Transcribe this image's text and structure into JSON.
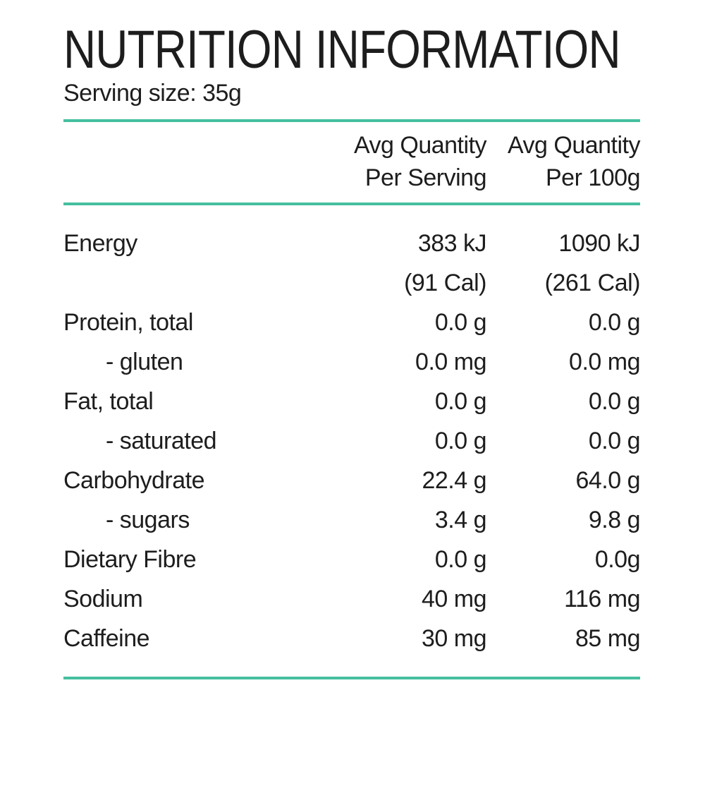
{
  "page": {
    "background_color": "#ffffff",
    "text_color": "#1d1d1d",
    "accent_line_color": "#46bfa0"
  },
  "header": {
    "title": "NUTRITION INFORMATION",
    "serving_size": "Serving size: 35g"
  },
  "table": {
    "columns": [
      {
        "label_line1": "Avg Quantity",
        "label_line2": "Per Serving"
      },
      {
        "label_line1": "Avg Quantity",
        "label_line2": "Per 100g"
      }
    ],
    "rows": [
      {
        "label": "Energy",
        "indent": false,
        "per_serving": "383 kJ",
        "per_100g": "1090 kJ"
      },
      {
        "label": "",
        "indent": false,
        "per_serving": "(91 Cal)",
        "per_100g": "(261 Cal)"
      },
      {
        "label": "Protein, total",
        "indent": false,
        "per_serving": "0.0 g",
        "per_100g": "0.0 g"
      },
      {
        "label": "- gluten",
        "indent": true,
        "per_serving": "0.0 mg",
        "per_100g": "0.0 mg"
      },
      {
        "label": "Fat, total",
        "indent": false,
        "per_serving": "0.0 g",
        "per_100g": "0.0 g"
      },
      {
        "label": "- saturated",
        "indent": true,
        "per_serving": "0.0 g",
        "per_100g": "0.0 g"
      },
      {
        "label": "Carbohydrate",
        "indent": false,
        "per_serving": "22.4 g",
        "per_100g": "64.0 g"
      },
      {
        "label": "- sugars",
        "indent": true,
        "per_serving": "3.4 g",
        "per_100g": "9.8 g"
      },
      {
        "label": "Dietary Fibre",
        "indent": false,
        "per_serving": "0.0 g",
        "per_100g": "0.0g"
      },
      {
        "label": "Sodium",
        "indent": false,
        "per_serving": "40 mg",
        "per_100g": "116 mg"
      },
      {
        "label": "Caffeine",
        "indent": false,
        "per_serving": "30 mg",
        "per_100g": "85 mg"
      }
    ]
  }
}
